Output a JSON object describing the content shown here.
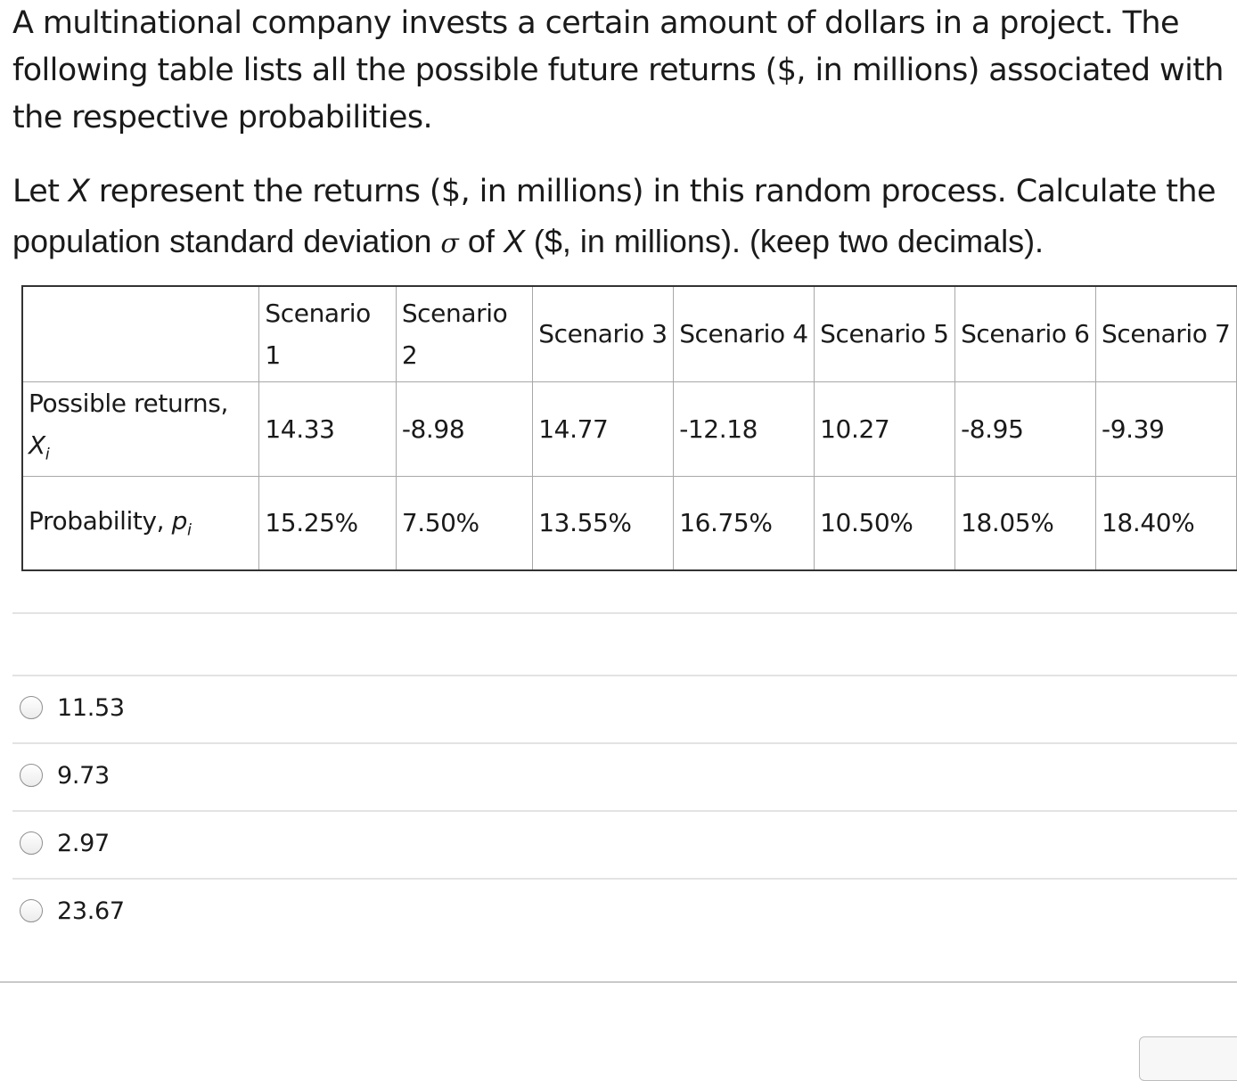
{
  "question": {
    "paragraph1": "A multinational company invests a certain amount of dollars in a project. The following table lists all the possible future returns ($, in millions) associated with the respective probabilities.",
    "p2_part1": "Let ",
    "p2_var_x": "X",
    "p2_part2": " represent the returns ($, in millions) in this random process. Calculate the",
    "p2_part3": "population standard deviation ",
    "p2_sigma": "σ",
    "p2_part4": " of ",
    "p2_var_x2": "X",
    "p2_part5": " ($, in millions). (keep two decimals)."
  },
  "table": {
    "headers": [
      "",
      "Scenario 1",
      "Scenario 2",
      "Scenario 3",
      "Scenario 4",
      "Scenario 5",
      "Scenario 6",
      "Scenario 7"
    ],
    "row_returns": {
      "label_text": "Possible returns, ",
      "label_var": "X",
      "label_sub": "i",
      "values": [
        "14.33",
        "-8.98",
        "14.77",
        "-12.18",
        "10.27",
        "-8.95",
        "-9.39"
      ]
    },
    "row_prob": {
      "label_text": "Probability, ",
      "label_var": "p",
      "label_sub": "i",
      "values": [
        "15.25%",
        "7.50%",
        "13.55%",
        "16.75%",
        "10.50%",
        "18.05%",
        "18.40%"
      ]
    }
  },
  "options": [
    "11.53",
    "9.73",
    "2.97",
    "23.67"
  ]
}
